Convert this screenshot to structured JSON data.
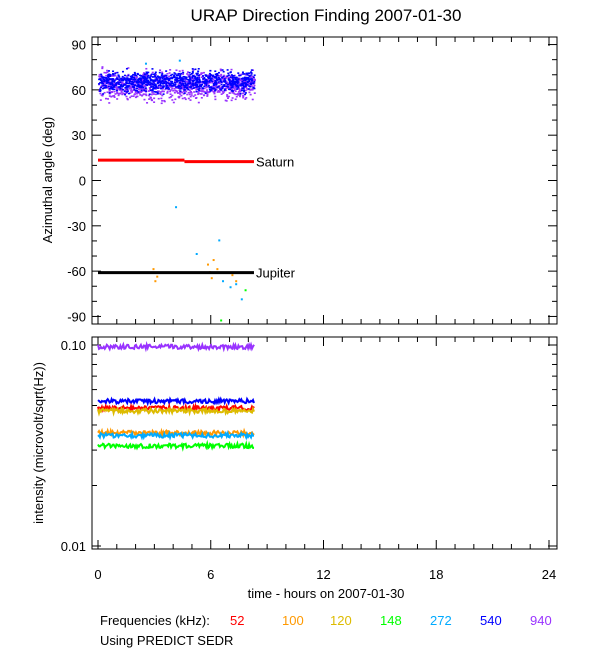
{
  "chart_data": [
    {
      "type": "scatter",
      "title": "URAP Direction Finding  2007-01-30",
      "ylabel": "Azimuthal angle (deg)",
      "xlim": [
        0,
        24
      ],
      "ylim": [
        -95,
        95
      ],
      "yticks": [
        -90,
        -60,
        -30,
        0,
        30,
        60,
        90
      ],
      "reference_lines": [
        {
          "name": "Saturn",
          "color": "#ff0000",
          "segments": [
            {
              "x": [
                0,
                4.6
              ],
              "y": 13.5
            },
            {
              "x": [
                4.6,
                8.3
              ],
              "y": 12.5
            }
          ]
        },
        {
          "name": "Jupiter",
          "color": "#000000",
          "segments": [
            {
              "x": [
                0,
                8.3
              ],
              "y": -61
            }
          ]
        }
      ],
      "series": [
        {
          "name": "940",
          "color": "#9933ff",
          "x_range": [
            0,
            8.3
          ],
          "y_center": 63,
          "y_spread": 7
        },
        {
          "name": "540",
          "color": "#0000ff",
          "x_range": [
            0,
            8.3
          ],
          "y_center": 66,
          "y_spread": 5
        },
        {
          "name": "100",
          "color": "#ff9900",
          "points": [
            [
              2.9,
              -58
            ],
            [
              3.1,
              -63
            ],
            [
              3.0,
              -66
            ],
            [
              5.8,
              -55
            ],
            [
              5.9,
              -60
            ],
            [
              6.1,
              -52
            ],
            [
              6.0,
              -64
            ],
            [
              6.3,
              -58
            ],
            [
              7.1,
              -62
            ],
            [
              7.3,
              -66
            ]
          ]
        },
        {
          "name": "272",
          "color": "#00aaff",
          "points": [
            [
              4.1,
              -17
            ],
            [
              5.2,
              -48
            ],
            [
              6.4,
              -39
            ],
            [
              6.6,
              -66
            ],
            [
              7.0,
              -70
            ],
            [
              7.3,
              -68
            ],
            [
              7.6,
              -78
            ],
            [
              4.3,
              80
            ],
            [
              2.5,
              78
            ]
          ]
        },
        {
          "name": "148",
          "color": "#00ff00",
          "points": [
            [
              6.5,
              -92
            ],
            [
              7.8,
              -72
            ]
          ]
        }
      ]
    },
    {
      "type": "line",
      "ylabel": "intensity (microvolt/sqrt(Hz))",
      "xlabel": "time - hours on 2007-01-30",
      "xlim": [
        0,
        24
      ],
      "ylim": [
        0.01,
        0.1
      ],
      "yscale": "log",
      "xticks": [
        0,
        6,
        12,
        18,
        24
      ],
      "yticks": [
        0.01,
        0.1
      ],
      "ytick_labels": [
        "0.01",
        "0.10"
      ],
      "series": [
        {
          "name": "940",
          "color": "#9933ff",
          "x_range": [
            0,
            8.3
          ],
          "value": 0.098
        },
        {
          "name": "540",
          "color": "#0000ff",
          "x_range": [
            0,
            8.3
          ],
          "value": 0.0525
        },
        {
          "name": "52",
          "color": "#ff0000",
          "x_range": [
            0,
            8.3
          ],
          "value": 0.0485
        },
        {
          "name": "120",
          "color": "#ddbb00",
          "x_range": [
            0,
            8.3
          ],
          "value": 0.047
        },
        {
          "name": "100",
          "color": "#ff9900",
          "x_range": [
            0,
            8.3
          ],
          "value": 0.0365
        },
        {
          "name": "272",
          "color": "#00aaff",
          "x_range": [
            0,
            8.3
          ],
          "value": 0.0355
        },
        {
          "name": "148",
          "color": "#00ff00",
          "x_range": [
            0,
            8.3
          ],
          "value": 0.0315
        }
      ]
    }
  ],
  "legend": {
    "label": "Frequencies (kHz):",
    "items": [
      {
        "text": "52",
        "color": "#ff0000"
      },
      {
        "text": "100",
        "color": "#ff9900"
      },
      {
        "text": "120",
        "color": "#ddbb00"
      },
      {
        "text": "148",
        "color": "#00ff00"
      },
      {
        "text": "272",
        "color": "#00aaff"
      },
      {
        "text": "540",
        "color": "#0000ff"
      },
      {
        "text": "940",
        "color": "#9933ff"
      }
    ]
  },
  "footnote": "Using PREDICT SEDR"
}
